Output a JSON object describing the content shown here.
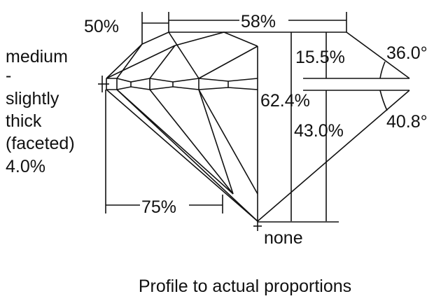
{
  "diagram": {
    "caption": "Profile to actual proportions",
    "girdle_label": [
      "medium",
      "-",
      "slightly",
      "thick",
      "(faceted)",
      "4.0%"
    ],
    "labels": {
      "star_length": "50%",
      "table": "58%",
      "crown_height": "15.5%",
      "crown_angle": "36.0°",
      "total_depth": "62.4%",
      "pavilion_depth": "43.0%",
      "pavilion_angle": "40.8°",
      "lower_half": "75%",
      "culet": "none"
    },
    "line_color": "#111111",
    "background": "#ffffff"
  }
}
